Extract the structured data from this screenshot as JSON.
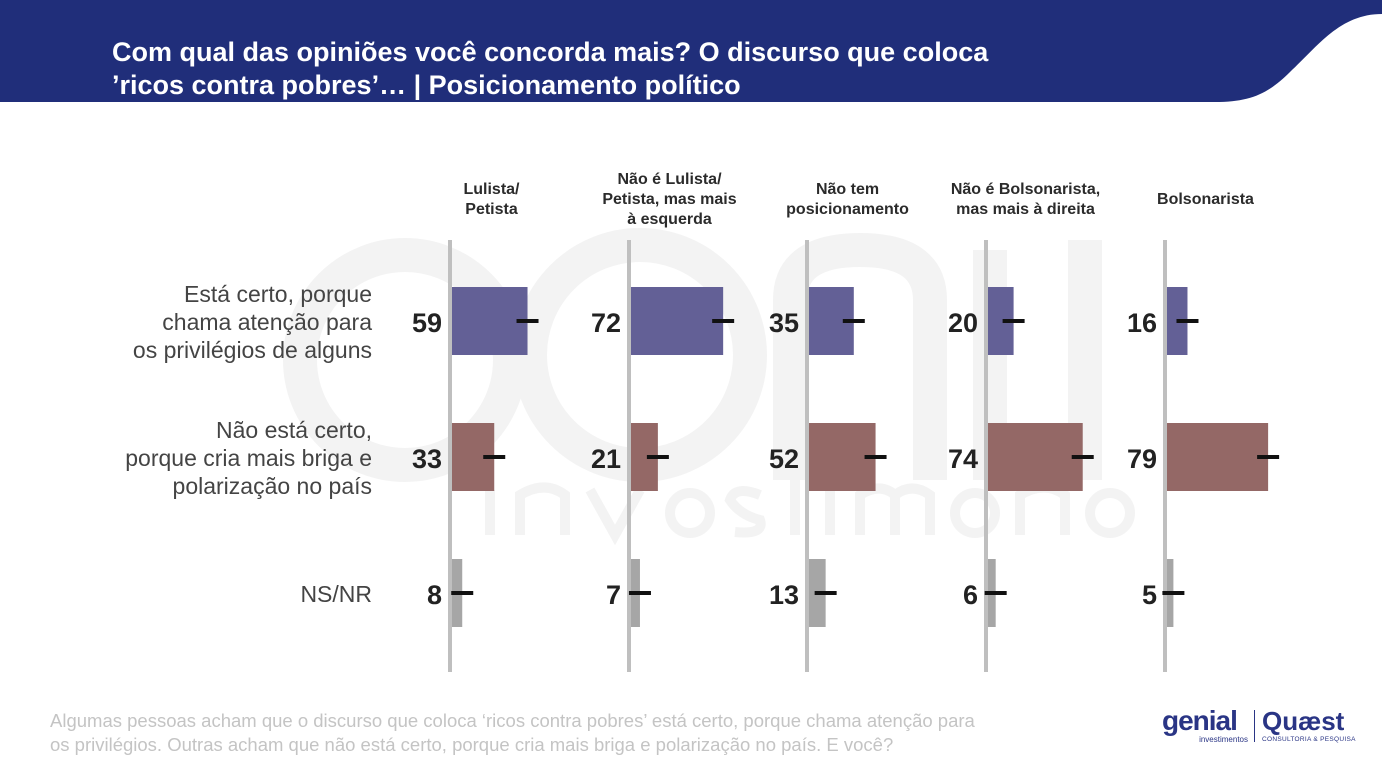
{
  "title_line1": "Com qual das opiniões você concorda mais? O discurso que coloca",
  "title_line2": "’ricos contra pobres’… | Posicionamento político",
  "colors": {
    "header": "#202e7a",
    "positive": "#636096",
    "negative": "#946866",
    "nsnr": "#a6a6a6",
    "axis": "#bfbfbf"
  },
  "chart_data": {
    "type": "bar",
    "orientation": "horizontal-small-multiples",
    "groups": [
      "Lulista/\nPetista",
      "Não é Lulista/\nPetista, mas mais\nà esquerda",
      "Não tem\nposicionamento",
      "Não é Bolsonarista,\nmas mais à direita",
      "Bolsonarista"
    ],
    "categories": [
      "Está certo, porque\nchama atenção para\nos privilégios de alguns",
      "Não está certo,\nporque cria mais briga e\npolarização no país",
      "NS/NR"
    ],
    "series": [
      {
        "values": [
          59,
          33,
          8
        ]
      },
      {
        "values": [
          72,
          21,
          7
        ]
      },
      {
        "values": [
          35,
          52,
          13
        ]
      },
      {
        "values": [
          20,
          74,
          6
        ]
      },
      {
        "values": [
          16,
          79,
          5
        ]
      }
    ],
    "xlim": [
      0,
      100
    ],
    "error_bars": true
  },
  "footnote_line1": "Algumas pessoas acham que o discurso que coloca ‘ricos contra pobres’ está certo, porque chama atenção para",
  "footnote_line2": "os privilégios. Outras acham que não está certo, porque cria mais briga e polarização no país. E você?",
  "logos": {
    "genial": "genial",
    "genial_sub": "investimentos",
    "quaest": "Quæst",
    "quaest_sub": "CONSULTORIA & PESQUISA"
  }
}
